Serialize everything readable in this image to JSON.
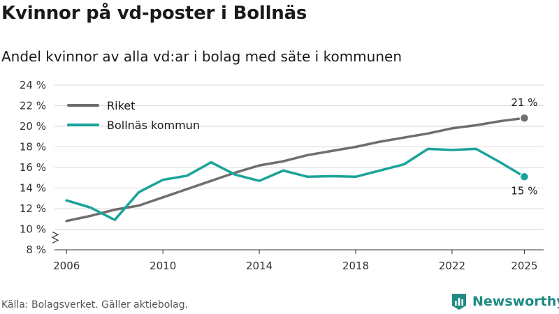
{
  "title": "Kvinnor på vd-poster i Bollnäs",
  "subtitle": "Andel kvinnor av alla vd:ar i bolag med säte i kommunen",
  "source": "Källa: Bolagsverket. Gäller aktiebolag.",
  "brand": "Newsworthy",
  "colors": {
    "riket": "#6e6e70",
    "bollnas": "#1aa39a",
    "grid": "#d9d9d9",
    "axis": "#333333",
    "brand": "#1f8b83"
  },
  "chart_data": {
    "type": "line",
    "title": "Kvinnor på vd-poster i Bollnäs",
    "xlabel": "",
    "ylabel": "",
    "ylim": [
      8,
      24
    ],
    "yticks": [
      8,
      10,
      12,
      14,
      16,
      18,
      20,
      22,
      24
    ],
    "ytick_labels": [
      "8 %",
      "10 %",
      "12 %",
      "14 %",
      "16 %",
      "18 %",
      "20 %",
      "22 %",
      "24 %"
    ],
    "xlim": [
      2005.5,
      2025.8
    ],
    "xticks": [
      2006,
      2010,
      2014,
      2018,
      2022,
      2025
    ],
    "xtick_labels": [
      "2006",
      "2010",
      "2014",
      "2018",
      "2022",
      "2025"
    ],
    "axis_break": true,
    "legend_position": "top-left",
    "x": [
      2006,
      2007,
      2008,
      2009,
      2010,
      2011,
      2012,
      2013,
      2014,
      2015,
      2016,
      2017,
      2018,
      2019,
      2020,
      2021,
      2022,
      2023,
      2024,
      2025
    ],
    "series": [
      {
        "name": "Riket",
        "color": "#6e6e70",
        "end_label": "21 %",
        "values": [
          10.8,
          11.3,
          11.9,
          12.3,
          13.1,
          13.9,
          14.7,
          15.5,
          16.2,
          16.6,
          17.2,
          17.6,
          18.0,
          18.5,
          18.9,
          19.3,
          19.8,
          20.1,
          20.5,
          20.8
        ]
      },
      {
        "name": "Bollnäs kommun",
        "color": "#1aa39a",
        "end_label": "15 %",
        "values": [
          12.8,
          12.1,
          10.9,
          13.6,
          14.8,
          15.2,
          16.5,
          15.3,
          14.7,
          15.7,
          15.1,
          15.15,
          15.1,
          15.7,
          16.3,
          17.8,
          17.7,
          17.8,
          16.5,
          15.1
        ]
      }
    ]
  }
}
